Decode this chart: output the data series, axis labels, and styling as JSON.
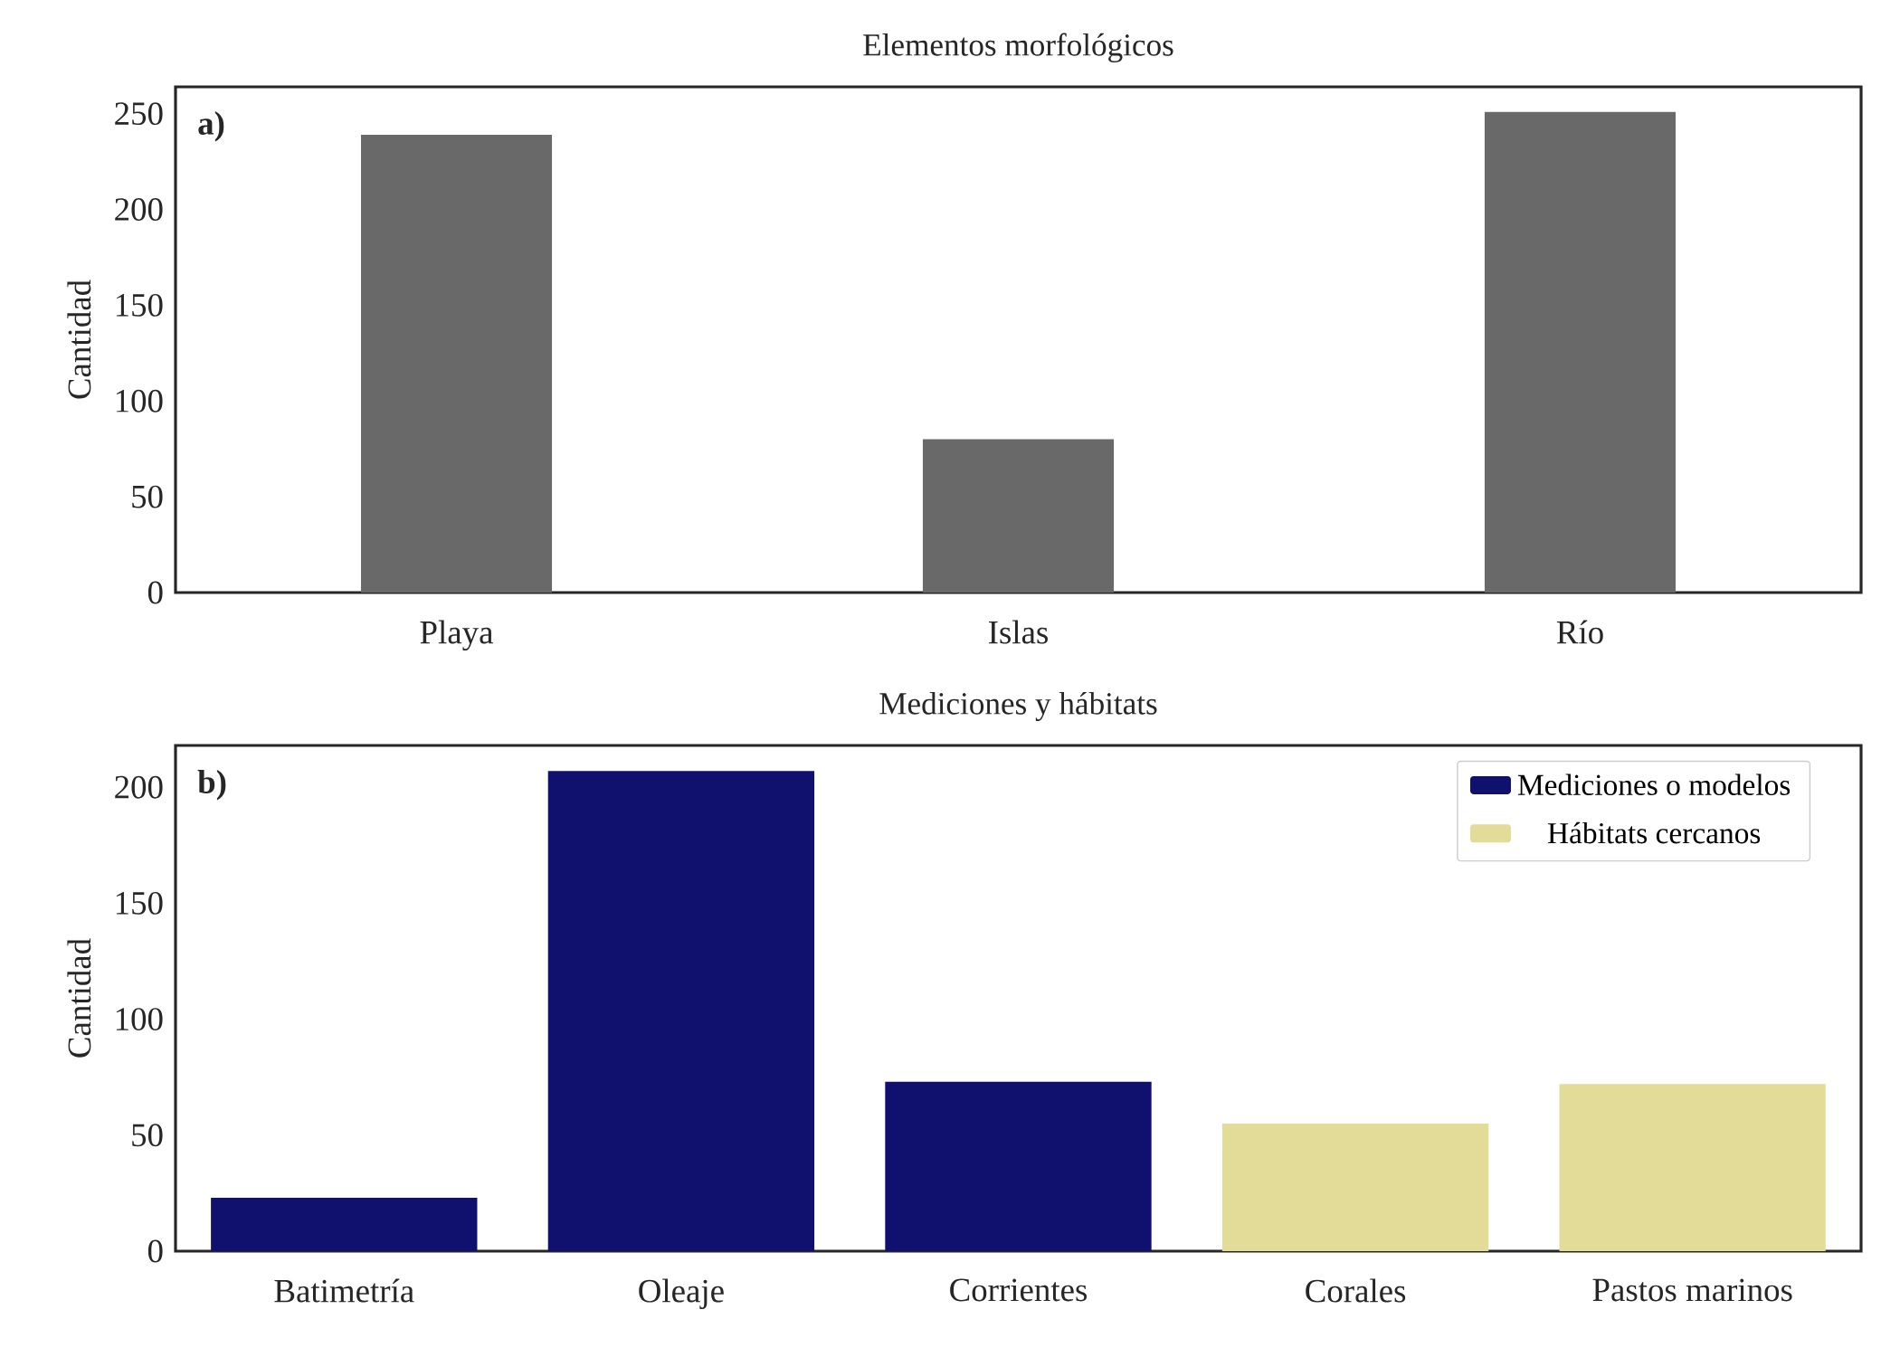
{
  "chart_data": [
    {
      "type": "bar",
      "title": "Elementos morfológicos",
      "ylabel": "Cantidad",
      "categories": [
        "Playa",
        "Islas",
        "Río"
      ],
      "values": [
        239,
        80,
        251
      ],
      "color": "#696969",
      "ylim": [
        0,
        264
      ],
      "yticks": [
        0,
        50,
        100,
        150,
        200,
        250
      ],
      "grid": false,
      "legend": false,
      "annotations": [
        "a)"
      ]
    },
    {
      "type": "bar",
      "title": "Mediciones y hábitats",
      "ylabel": "Cantidad",
      "categories": [
        "Batimetría",
        "Oleaje",
        "Corrientes",
        "Corales",
        "Pastos marinos"
      ],
      "series": [
        {
          "name": "Mediciones o modelos",
          "color": "#10106e",
          "values": [
            23,
            207,
            73,
            null,
            null
          ]
        },
        {
          "name": "Hábitats cercanos",
          "color": "#e2dc98",
          "values": [
            null,
            null,
            null,
            55,
            72
          ]
        }
      ],
      "ylim": [
        0,
        218
      ],
      "yticks": [
        0,
        50,
        100,
        150,
        200
      ],
      "grid": false,
      "legend": "top right",
      "annotations": [
        "b)"
      ]
    }
  ]
}
